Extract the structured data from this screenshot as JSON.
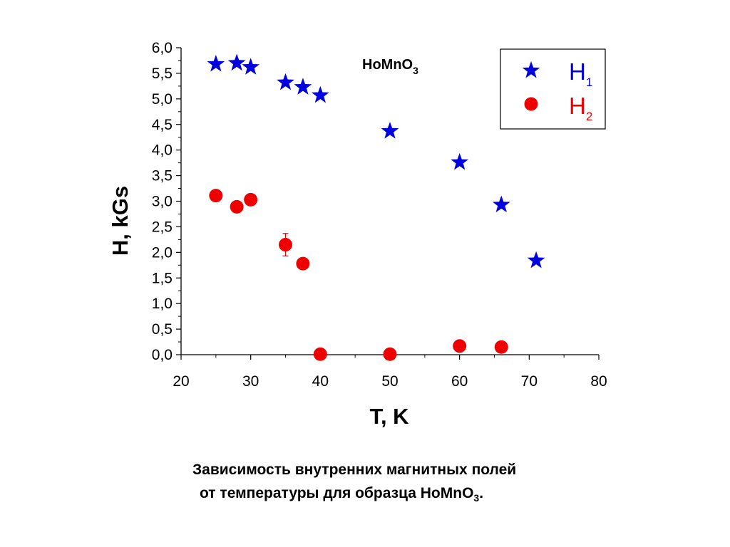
{
  "chart_data": {
    "type": "scatter",
    "title_main": "HoMnO",
    "title_sub": "3",
    "xlabel": "T, K",
    "ylabel": "H,  kGs",
    "xlim": [
      20,
      80
    ],
    "ylim": [
      0,
      6
    ],
    "x_ticks": [
      "20",
      "30",
      "40",
      "50",
      "60",
      "70",
      "80"
    ],
    "y_ticks": [
      "0,0",
      "0,5",
      "1,0",
      "1,5",
      "2,0",
      "2,5",
      "3,0",
      "3,5",
      "4,0",
      "4,5",
      "5,0",
      "5,5",
      "6,0"
    ],
    "legend_position": "top-right",
    "series": [
      {
        "label_main": "H",
        "label_sub": "1",
        "marker": "star",
        "color": "#0000dd",
        "x": [
          25,
          28,
          30,
          35,
          37.5,
          40,
          50,
          60,
          66,
          71
        ],
        "y": [
          5.68,
          5.7,
          5.62,
          5.32,
          5.23,
          5.07,
          4.37,
          3.76,
          2.93,
          1.84
        ]
      },
      {
        "label_main": "H",
        "label_sub": "2",
        "marker": "circle",
        "color": "#ee0000",
        "x": [
          25,
          28,
          30,
          35,
          37.5,
          40,
          50,
          60,
          66
        ],
        "y": [
          3.11,
          2.89,
          3.03,
          2.15,
          1.78,
          0.01,
          0.01,
          0.17,
          0.15
        ],
        "error": [
          0,
          0,
          0,
          0.22,
          0.1,
          0,
          0,
          0,
          0
        ]
      }
    ]
  },
  "caption": {
    "line1": "Зависимость внутренних магнитных полей",
    "line2_main": "от температуры для образца HoMnO",
    "line2_sub": "3",
    "line2_end": "."
  }
}
